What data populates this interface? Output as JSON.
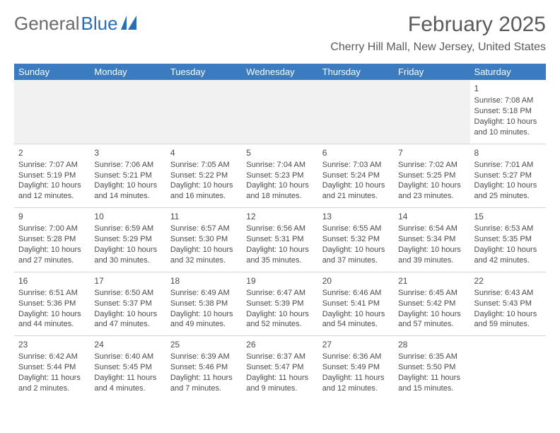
{
  "logo": {
    "part1": "General",
    "part2": "Blue"
  },
  "title": "February 2025",
  "location": "Cherry Hill Mall, New Jersey, United States",
  "colors": {
    "header_bg": "#3b7bbf",
    "header_text": "#ffffff",
    "text": "#4a4a4a",
    "border": "#cfd6dd",
    "empty_bg": "#f1f1f1"
  },
  "day_headers": [
    "Sunday",
    "Monday",
    "Tuesday",
    "Wednesday",
    "Thursday",
    "Friday",
    "Saturday"
  ],
  "weeks": [
    [
      null,
      null,
      null,
      null,
      null,
      null,
      {
        "n": "1",
        "sr": "Sunrise: 7:08 AM",
        "ss": "Sunset: 5:18 PM",
        "d1": "Daylight: 10 hours",
        "d2": "and 10 minutes."
      }
    ],
    [
      {
        "n": "2",
        "sr": "Sunrise: 7:07 AM",
        "ss": "Sunset: 5:19 PM",
        "d1": "Daylight: 10 hours",
        "d2": "and 12 minutes."
      },
      {
        "n": "3",
        "sr": "Sunrise: 7:06 AM",
        "ss": "Sunset: 5:21 PM",
        "d1": "Daylight: 10 hours",
        "d2": "and 14 minutes."
      },
      {
        "n": "4",
        "sr": "Sunrise: 7:05 AM",
        "ss": "Sunset: 5:22 PM",
        "d1": "Daylight: 10 hours",
        "d2": "and 16 minutes."
      },
      {
        "n": "5",
        "sr": "Sunrise: 7:04 AM",
        "ss": "Sunset: 5:23 PM",
        "d1": "Daylight: 10 hours",
        "d2": "and 18 minutes."
      },
      {
        "n": "6",
        "sr": "Sunrise: 7:03 AM",
        "ss": "Sunset: 5:24 PM",
        "d1": "Daylight: 10 hours",
        "d2": "and 21 minutes."
      },
      {
        "n": "7",
        "sr": "Sunrise: 7:02 AM",
        "ss": "Sunset: 5:25 PM",
        "d1": "Daylight: 10 hours",
        "d2": "and 23 minutes."
      },
      {
        "n": "8",
        "sr": "Sunrise: 7:01 AM",
        "ss": "Sunset: 5:27 PM",
        "d1": "Daylight: 10 hours",
        "d2": "and 25 minutes."
      }
    ],
    [
      {
        "n": "9",
        "sr": "Sunrise: 7:00 AM",
        "ss": "Sunset: 5:28 PM",
        "d1": "Daylight: 10 hours",
        "d2": "and 27 minutes."
      },
      {
        "n": "10",
        "sr": "Sunrise: 6:59 AM",
        "ss": "Sunset: 5:29 PM",
        "d1": "Daylight: 10 hours",
        "d2": "and 30 minutes."
      },
      {
        "n": "11",
        "sr": "Sunrise: 6:57 AM",
        "ss": "Sunset: 5:30 PM",
        "d1": "Daylight: 10 hours",
        "d2": "and 32 minutes."
      },
      {
        "n": "12",
        "sr": "Sunrise: 6:56 AM",
        "ss": "Sunset: 5:31 PM",
        "d1": "Daylight: 10 hours",
        "d2": "and 35 minutes."
      },
      {
        "n": "13",
        "sr": "Sunrise: 6:55 AM",
        "ss": "Sunset: 5:32 PM",
        "d1": "Daylight: 10 hours",
        "d2": "and 37 minutes."
      },
      {
        "n": "14",
        "sr": "Sunrise: 6:54 AM",
        "ss": "Sunset: 5:34 PM",
        "d1": "Daylight: 10 hours",
        "d2": "and 39 minutes."
      },
      {
        "n": "15",
        "sr": "Sunrise: 6:53 AM",
        "ss": "Sunset: 5:35 PM",
        "d1": "Daylight: 10 hours",
        "d2": "and 42 minutes."
      }
    ],
    [
      {
        "n": "16",
        "sr": "Sunrise: 6:51 AM",
        "ss": "Sunset: 5:36 PM",
        "d1": "Daylight: 10 hours",
        "d2": "and 44 minutes."
      },
      {
        "n": "17",
        "sr": "Sunrise: 6:50 AM",
        "ss": "Sunset: 5:37 PM",
        "d1": "Daylight: 10 hours",
        "d2": "and 47 minutes."
      },
      {
        "n": "18",
        "sr": "Sunrise: 6:49 AM",
        "ss": "Sunset: 5:38 PM",
        "d1": "Daylight: 10 hours",
        "d2": "and 49 minutes."
      },
      {
        "n": "19",
        "sr": "Sunrise: 6:47 AM",
        "ss": "Sunset: 5:39 PM",
        "d1": "Daylight: 10 hours",
        "d2": "and 52 minutes."
      },
      {
        "n": "20",
        "sr": "Sunrise: 6:46 AM",
        "ss": "Sunset: 5:41 PM",
        "d1": "Daylight: 10 hours",
        "d2": "and 54 minutes."
      },
      {
        "n": "21",
        "sr": "Sunrise: 6:45 AM",
        "ss": "Sunset: 5:42 PM",
        "d1": "Daylight: 10 hours",
        "d2": "and 57 minutes."
      },
      {
        "n": "22",
        "sr": "Sunrise: 6:43 AM",
        "ss": "Sunset: 5:43 PM",
        "d1": "Daylight: 10 hours",
        "d2": "and 59 minutes."
      }
    ],
    [
      {
        "n": "23",
        "sr": "Sunrise: 6:42 AM",
        "ss": "Sunset: 5:44 PM",
        "d1": "Daylight: 11 hours",
        "d2": "and 2 minutes."
      },
      {
        "n": "24",
        "sr": "Sunrise: 6:40 AM",
        "ss": "Sunset: 5:45 PM",
        "d1": "Daylight: 11 hours",
        "d2": "and 4 minutes."
      },
      {
        "n": "25",
        "sr": "Sunrise: 6:39 AM",
        "ss": "Sunset: 5:46 PM",
        "d1": "Daylight: 11 hours",
        "d2": "and 7 minutes."
      },
      {
        "n": "26",
        "sr": "Sunrise: 6:37 AM",
        "ss": "Sunset: 5:47 PM",
        "d1": "Daylight: 11 hours",
        "d2": "and 9 minutes."
      },
      {
        "n": "27",
        "sr": "Sunrise: 6:36 AM",
        "ss": "Sunset: 5:49 PM",
        "d1": "Daylight: 11 hours",
        "d2": "and 12 minutes."
      },
      {
        "n": "28",
        "sr": "Sunrise: 6:35 AM",
        "ss": "Sunset: 5:50 PM",
        "d1": "Daylight: 11 hours",
        "d2": "and 15 minutes."
      },
      null
    ]
  ]
}
